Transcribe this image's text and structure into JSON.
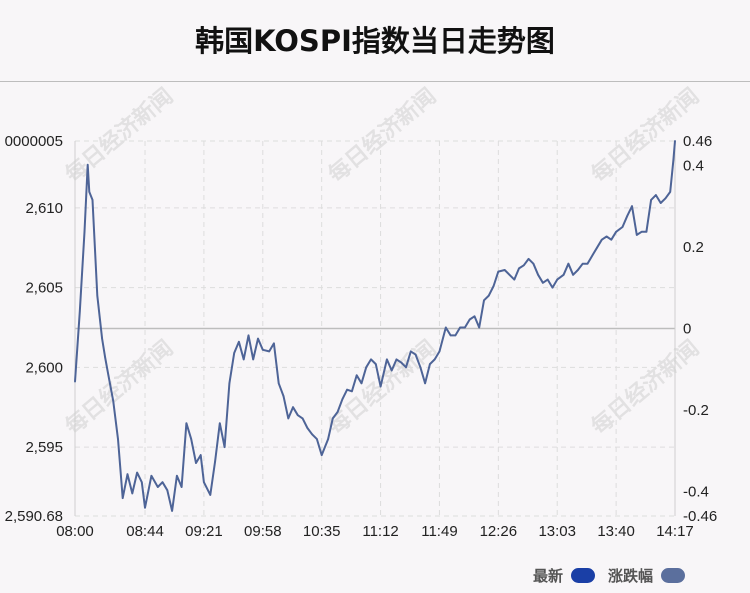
{
  "title": "韩国KOSPI指数当日走势图",
  "watermark": "每日经济新闻",
  "legend": [
    {
      "label": "最新",
      "color": "#1a3fa6"
    },
    {
      "label": "涨跌幅",
      "color": "#5b6f9d"
    }
  ],
  "colors": {
    "line": "#4e6497",
    "grid": "#dddddd",
    "zero_line": "#bdbdbd"
  },
  "chart_data": {
    "type": "line",
    "xlabel": "",
    "ylabel": "",
    "x_ticks": [
      "08:00",
      "08:44",
      "09:21",
      "09:58",
      "10:35",
      "11:12",
      "11:49",
      "12:26",
      "13:03",
      "13:40",
      "14:17"
    ],
    "y_left_ticks": [
      "2,590.68",
      "2,595",
      "2,600",
      "2,605",
      "2,610",
      "0000005"
    ],
    "y_right_ticks": [
      "-0.46",
      "-0.4",
      "-0.2",
      "0",
      "0.2",
      "0.4",
      "0.46"
    ],
    "ylim": [
      2590.68,
      2614.19
    ],
    "y_right_lim": [
      -0.46,
      0.46
    ],
    "x_range": [
      "08:00",
      "14:17"
    ],
    "grid": true,
    "legend_position": "bottom-right",
    "series": [
      {
        "name": "最新",
        "x": [
          "08:00",
          "08:03",
          "08:06",
          "08:08",
          "08:09",
          "08:11",
          "08:14",
          "08:17",
          "08:19",
          "08:21",
          "08:24",
          "08:27",
          "08:30",
          "08:33",
          "08:36",
          "08:39",
          "08:42",
          "08:44",
          "08:48",
          "08:52",
          "08:55",
          "08:58",
          "09:01",
          "09:04",
          "09:07",
          "09:10",
          "09:13",
          "09:16",
          "09:19",
          "09:21",
          "09:25",
          "09:28",
          "09:31",
          "09:34",
          "09:37",
          "09:40",
          "09:43",
          "09:46",
          "09:49",
          "09:52",
          "09:55",
          "09:58",
          "10:02",
          "10:05",
          "10:08",
          "10:11",
          "10:14",
          "10:17",
          "10:20",
          "10:23",
          "10:26",
          "10:29",
          "10:32",
          "10:35",
          "10:39",
          "10:42",
          "10:45",
          "10:48",
          "10:51",
          "10:54",
          "10:57",
          "11:00",
          "11:03",
          "11:06",
          "11:09",
          "11:12",
          "11:16",
          "11:19",
          "11:22",
          "11:25",
          "11:28",
          "11:31",
          "11:34",
          "11:37",
          "11:40",
          "11:43",
          "11:46",
          "11:49",
          "11:53",
          "11:56",
          "11:59",
          "12:02",
          "12:05",
          "12:08",
          "12:11",
          "12:14",
          "12:17",
          "12:20",
          "12:23",
          "12:26",
          "12:30",
          "12:33",
          "12:36",
          "12:39",
          "12:42",
          "12:45",
          "12:48",
          "12:51",
          "12:54",
          "12:57",
          "13:00",
          "13:03",
          "13:07",
          "13:10",
          "13:13",
          "13:16",
          "13:19",
          "13:22",
          "13:25",
          "13:28",
          "13:31",
          "13:34",
          "13:37",
          "13:40",
          "13:44",
          "13:47",
          "13:50",
          "13:53",
          "13:56",
          "13:59",
          "14:02",
          "14:05",
          "14:08",
          "14:11",
          "14:14",
          "14:16",
          "14:17"
        ],
        "values": [
          2599.1,
          2603.5,
          2608.5,
          2612.7,
          2611.0,
          2610.5,
          2604.5,
          2601.8,
          2600.6,
          2599.5,
          2597.9,
          2595.5,
          2591.8,
          2593.3,
          2592.1,
          2593.4,
          2592.8,
          2591.2,
          2593.2,
          2592.5,
          2592.8,
          2592.3,
          2591.0,
          2593.2,
          2592.5,
          2596.5,
          2595.5,
          2594.0,
          2594.5,
          2592.8,
          2592.0,
          2594.1,
          2596.5,
          2595.0,
          2599.0,
          2600.9,
          2601.6,
          2600.5,
          2602.0,
          2600.5,
          2601.8,
          2601.1,
          2601.0,
          2601.5,
          2599.0,
          2598.2,
          2596.8,
          2597.5,
          2597.0,
          2596.8,
          2596.2,
          2595.8,
          2595.5,
          2594.5,
          2595.5,
          2596.8,
          2597.2,
          2598.0,
          2598.6,
          2598.5,
          2599.5,
          2599.0,
          2600.0,
          2600.5,
          2600.2,
          2598.8,
          2600.5,
          2599.8,
          2600.5,
          2600.3,
          2600.0,
          2601.0,
          2600.8,
          2600.0,
          2599.0,
          2600.2,
          2600.5,
          2601.0,
          2602.5,
          2602.0,
          2602.0,
          2602.5,
          2602.5,
          2603.0,
          2603.2,
          2602.5,
          2604.2,
          2604.5,
          2605.1,
          2606.0,
          2606.1,
          2605.8,
          2605.5,
          2606.2,
          2606.4,
          2606.8,
          2606.5,
          2605.8,
          2605.3,
          2605.5,
          2605.0,
          2605.5,
          2605.8,
          2606.5,
          2605.8,
          2606.1,
          2606.5,
          2606.5,
          2607.0,
          2607.5,
          2608.0,
          2608.2,
          2608.0,
          2608.5,
          2608.8,
          2609.5,
          2610.1,
          2608.3,
          2608.5,
          2608.5,
          2610.5,
          2610.8,
          2610.3,
          2610.6,
          2611.0,
          2613.0,
          2614.2
        ]
      },
      {
        "name": "涨跌幅",
        "x": [
          "08:00",
          "14:17"
        ],
        "values": [
          -0.04,
          0.46
        ]
      }
    ]
  }
}
